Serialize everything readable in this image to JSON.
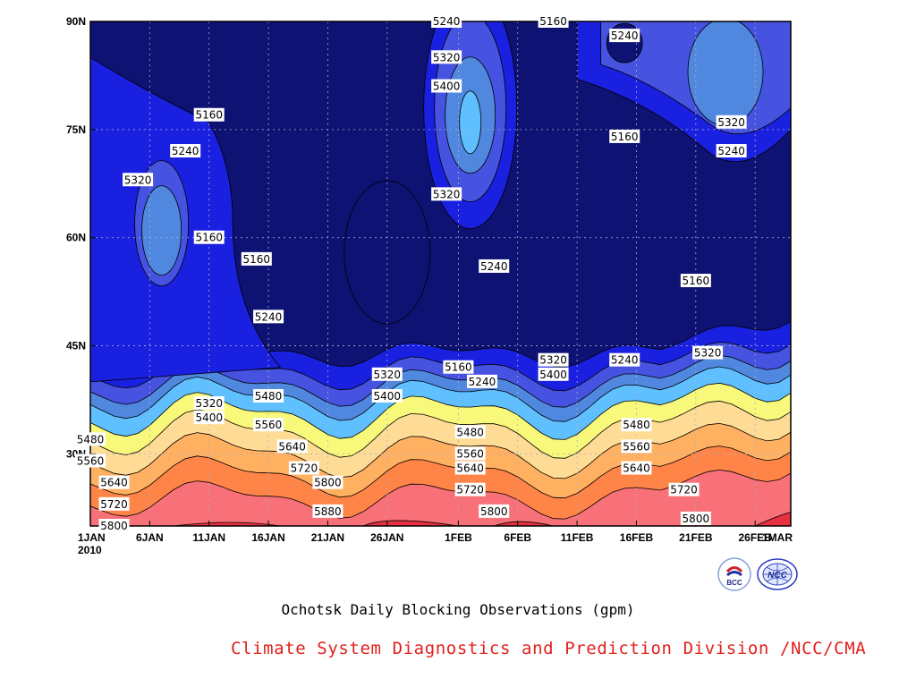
{
  "chart_data": {
    "type": "contour",
    "title": "",
    "subtitle": "Ochotsk Daily Blocking Observations (gpm)",
    "credit": "Climate System Diagnostics and Prediction Division /NCC/CMA",
    "x_axis": {
      "start": "2010-01-01",
      "end": "2010-03-01",
      "tick_labels": [
        "1JAN",
        "6JAN",
        "11JAN",
        "16JAN",
        "21JAN",
        "26JAN",
        "1FEB",
        "6FEB",
        "11FEB",
        "16FEB",
        "21FEB",
        "26FEB",
        "1MAR"
      ],
      "year_label": "2010"
    },
    "y_axis": {
      "range": [
        "20N",
        "90N"
      ],
      "tick_labels": [
        "30N",
        "45N",
        "60N",
        "75N",
        "90N"
      ]
    },
    "levels": [
      5160,
      5240,
      5320,
      5400,
      5480,
      5560,
      5640,
      5720,
      5800,
      5880
    ],
    "colors": {
      "below_5160": "#0e1272",
      "5160_5240": "#1a20e0",
      "5240_5320": "#4652e0",
      "5320_5400": "#5088e0",
      "5400_5480": "#60c0ff",
      "5480_5560": "#f8f87a",
      "5560_5640": "#ffdc96",
      "5640_5720": "#ffb060",
      "5720_5800": "#ff8448",
      "5800_5880": "#f87078",
      "above_5880": "#e83040"
    },
    "contour_labels": [
      {
        "text": "5240",
        "x": "Jan 31",
        "y": "90N"
      },
      {
        "text": "5160",
        "x": "Feb 9",
        "y": "90N"
      },
      {
        "text": "5240",
        "x": "Feb 15",
        "y": "88N"
      },
      {
        "text": "5320",
        "x": "Jan 31",
        "y": "85N"
      },
      {
        "text": "5400",
        "x": "Jan 31",
        "y": "81N"
      },
      {
        "text": "5320",
        "x": "Jan 31",
        "y": "66N"
      },
      {
        "text": "5160",
        "x": "Jan 11",
        "y": "77N"
      },
      {
        "text": "5240",
        "x": "Jan 9",
        "y": "72N"
      },
      {
        "text": "5320",
        "x": "Jan 5",
        "y": "68N"
      },
      {
        "text": "5160",
        "x": "Jan 11",
        "y": "60N"
      },
      {
        "text": "5160",
        "x": "Jan 15",
        "y": "57N"
      },
      {
        "text": "5240",
        "x": "Feb 4",
        "y": "56N"
      },
      {
        "text": "5240",
        "x": "Jan 16",
        "y": "49N"
      },
      {
        "text": "5160",
        "x": "Feb 21",
        "y": "54N"
      },
      {
        "text": "5160",
        "x": "Feb 15",
        "y": "74N"
      },
      {
        "text": "5320",
        "x": "Feb 24",
        "y": "76N"
      },
      {
        "text": "5240",
        "x": "Feb 24",
        "y": "72N"
      },
      {
        "text": "5320",
        "x": "Feb 22",
        "y": "44N"
      },
      {
        "text": "5240",
        "x": "Feb 15",
        "y": "43N"
      },
      {
        "text": "5320",
        "x": "Feb 9",
        "y": "43N"
      },
      {
        "text": "5400",
        "x": "Feb 9",
        "y": "41N"
      },
      {
        "text": "5160",
        "x": "Feb 1",
        "y": "42N"
      },
      {
        "text": "5240",
        "x": "Feb 3",
        "y": "40N"
      },
      {
        "text": "5320",
        "x": "Jan 26",
        "y": "41N"
      },
      {
        "text": "5400",
        "x": "Jan 26",
        "y": "38N"
      },
      {
        "text": "5320",
        "x": "Jan 11",
        "y": "37N"
      },
      {
        "text": "5400",
        "x": "Jan 11",
        "y": "35N"
      },
      {
        "text": "5480",
        "x": "Jan 16",
        "y": "38N"
      },
      {
        "text": "5560",
        "x": "Jan 16",
        "y": "34N"
      },
      {
        "text": "5640",
        "x": "Jan 18",
        "y": "31N"
      },
      {
        "text": "5480",
        "x": "Jan 1",
        "y": "32N"
      },
      {
        "text": "5560",
        "x": "Jan 1",
        "y": "29N"
      },
      {
        "text": "5640",
        "x": "Jan 3",
        "y": "26N"
      },
      {
        "text": "5720",
        "x": "Jan 19",
        "y": "28N"
      },
      {
        "text": "5720",
        "x": "Jan 3",
        "y": "23N"
      },
      {
        "text": "5800",
        "x": "Jan 21",
        "y": "26N"
      },
      {
        "text": "5800",
        "x": "Jan 3",
        "y": "20N"
      },
      {
        "text": "5880",
        "x": "Jan 21",
        "y": "22N"
      },
      {
        "text": "5480",
        "x": "Feb 2",
        "y": "33N"
      },
      {
        "text": "5560",
        "x": "Feb 2",
        "y": "30N"
      },
      {
        "text": "5640",
        "x": "Feb 2",
        "y": "28N"
      },
      {
        "text": "5720",
        "x": "Feb 2",
        "y": "25N"
      },
      {
        "text": "5800",
        "x": "Feb 4",
        "y": "22N"
      },
      {
        "text": "5480",
        "x": "Feb 16",
        "y": "34N"
      },
      {
        "text": "5560",
        "x": "Feb 16",
        "y": "31N"
      },
      {
        "text": "5640",
        "x": "Feb 16",
        "y": "28N"
      },
      {
        "text": "5720",
        "x": "Feb 20",
        "y": "25N"
      },
      {
        "text": "5800",
        "x": "Feb 21",
        "y": "21N"
      }
    ],
    "logos": [
      "BCC",
      "NCC"
    ]
  }
}
